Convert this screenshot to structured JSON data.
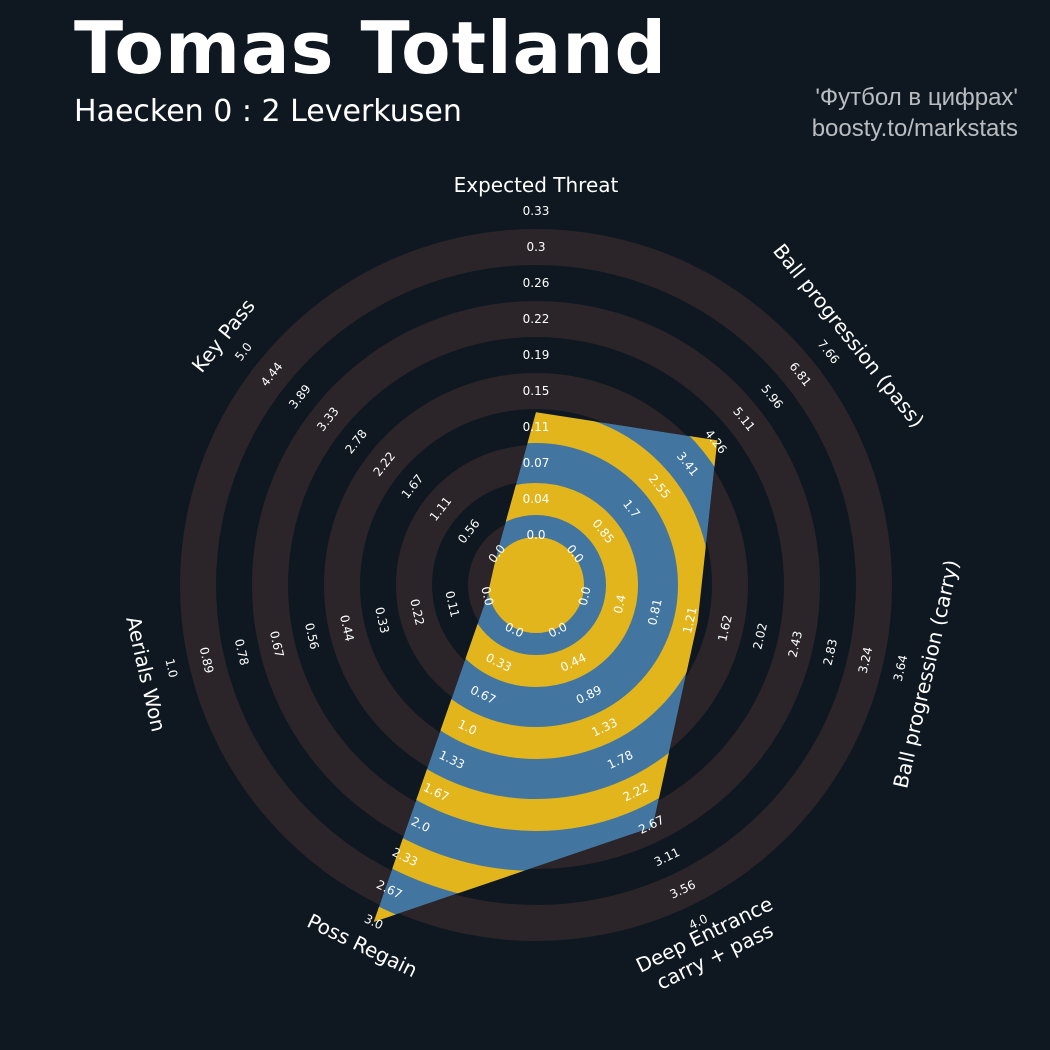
{
  "header": {
    "title": "Tomas Totland",
    "subtitle": "Haecken 0 : 2 Leverkusen",
    "credit_line1": "'Футбол в цифрах'",
    "credit_line2": "boosty.to/markstats"
  },
  "colors": {
    "background": "#0f1820",
    "ring_band": "#2b252a",
    "value_fill": "#4276a0",
    "value_band": "#e3b51d",
    "text": "#ffffff"
  },
  "chart_data": {
    "type": "radar",
    "title": "Tomas Totland",
    "subtitle": "Haecken 0 : 2 Leverkusen",
    "params": [
      "Expected Threat",
      "Ball progression (pass)",
      "Ball progression (carry)",
      "Deep Entrance\ncarry + pass",
      "Poss Regain",
      "Aerials Won",
      "Key Pass"
    ],
    "ticks": [
      [
        "0.0",
        "0.04",
        "0.07",
        "0.11",
        "0.15",
        "0.19",
        "0.22",
        "0.26",
        "0.3",
        "0.33"
      ],
      [
        "0.0",
        "0.85",
        "1.7",
        "2.55",
        "3.41",
        "4.26",
        "5.11",
        "5.96",
        "6.81",
        "7.66"
      ],
      [
        "0.0",
        "0.4",
        "0.81",
        "1.21",
        "1.62",
        "2.02",
        "2.43",
        "2.83",
        "3.24",
        "3.64"
      ],
      [
        "0.0",
        "0.44",
        "0.89",
        "1.33",
        "1.78",
        "2.22",
        "2.67",
        "3.11",
        "3.56",
        "4.0"
      ],
      [
        "0.0",
        "0.33",
        "0.67",
        "1.0",
        "1.33",
        "1.67",
        "2.0",
        "2.33",
        "2.67",
        "3.0"
      ],
      [
        "0.0",
        "0.11",
        "0.22",
        "0.33",
        "0.44",
        "0.56",
        "0.67",
        "0.78",
        "0.89",
        "1.0"
      ],
      [
        "0.0",
        "0.56",
        "1.11",
        "1.67",
        "2.22",
        "2.78",
        "3.33",
        "3.89",
        "4.44",
        "5.0"
      ]
    ],
    "range_min": [
      0,
      0,
      0,
      0,
      0,
      0,
      0
    ],
    "range_max": [
      0.33,
      7.66,
      3.64,
      4.0,
      3.0,
      1.0,
      5.0
    ],
    "values": [
      0.125,
      4.3,
      1.3,
      2.7,
      3.0,
      0.0,
      0.0
    ]
  }
}
